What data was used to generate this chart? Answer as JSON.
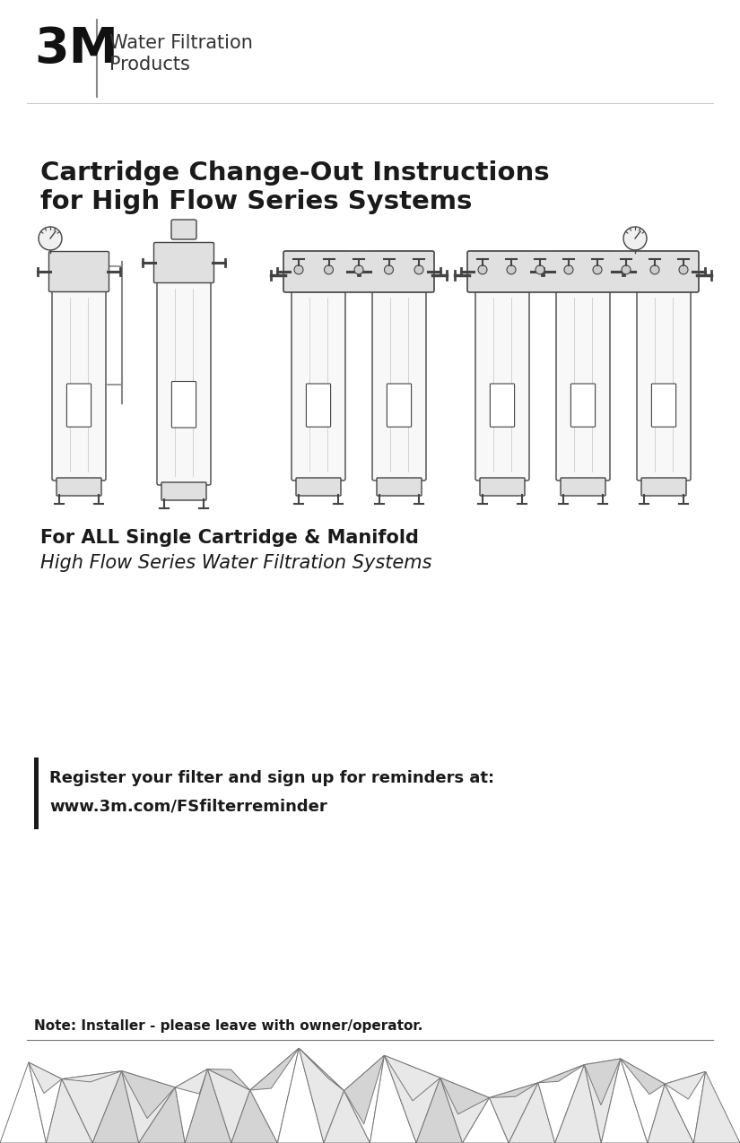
{
  "bg_color": "#ffffff",
  "logo_text": "3M",
  "logo_subtext_line1": "Water Filtration",
  "logo_subtext_line2": "Products",
  "title_line1": "Cartridge Change-Out Instructions",
  "title_line2": "for High Flow Series Systems",
  "subtitle_bold": "For ALL Single Cartridge & Manifold",
  "subtitle_italic": "High Flow Series Water Filtration Systems",
  "register_bold": "Register your filter and sign up for reminders at:",
  "register_url": "www.3m.com/FSfilterreminder",
  "note_text": "Note: Installer - please leave with owner/operator.",
  "text_color": "#1a1a1a",
  "accent_bar_color": "#1a1a1a",
  "line_color": "#888888",
  "filter_edge": "#444444",
  "filter_face": "#f8f8f8",
  "filter_head_face": "#e0e0e0",
  "tri_edge": "#888888",
  "tri_face_light": "#e8e8e8",
  "tri_face_dark": "#d0d0d0"
}
